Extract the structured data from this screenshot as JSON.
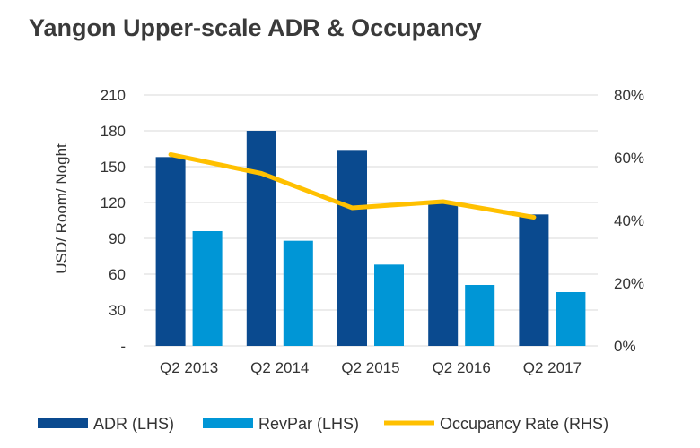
{
  "chart_data": {
    "type": "bar",
    "title": "Yangon Upper-scale ADR & Occupancy",
    "categories": [
      "Q2 2013",
      "Q2 2014",
      "Q2 2015",
      "Q2 2016",
      "Q2 2017"
    ],
    "series": [
      {
        "name": "ADR (LHS)",
        "type": "bar",
        "axis": "left",
        "color": "#0a4a8f",
        "values": [
          158,
          180,
          164,
          120,
          110
        ]
      },
      {
        "name": "RevPar (LHS)",
        "type": "bar",
        "axis": "left",
        "color": "#0096d6",
        "values": [
          96,
          88,
          68,
          51,
          45
        ]
      },
      {
        "name": "Occupancy Rate (RHS)",
        "type": "line",
        "axis": "right",
        "color": "#ffc000",
        "values": [
          61,
          55,
          44,
          46,
          41
        ]
      }
    ],
    "ylabel": "USD/ Room/ Noght",
    "ylim": [
      0,
      210
    ],
    "left_ticks": [
      "-",
      "30",
      "60",
      "90",
      "120",
      "150",
      "180",
      "210"
    ],
    "y2lim": [
      0,
      80
    ],
    "right_ticks": [
      "0%",
      "20%",
      "40%",
      "60%",
      "80%"
    ],
    "grid": true,
    "legend": "bottom"
  }
}
